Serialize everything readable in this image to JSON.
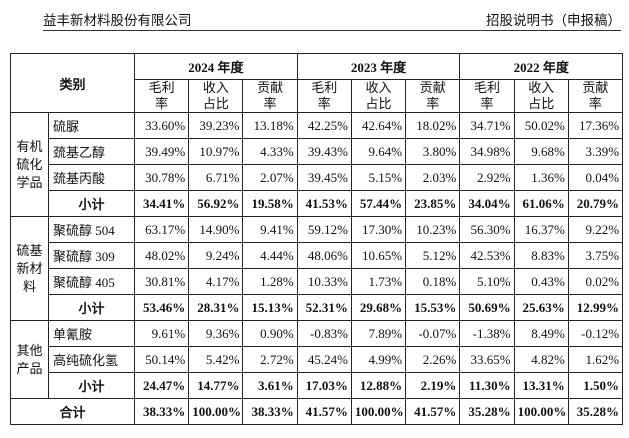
{
  "header": {
    "company": "益丰新材料股份有限公司",
    "document": "招股说明书（申报稿）"
  },
  "table": {
    "category_header": "类别",
    "years": [
      "2024 年度",
      "2023 年度",
      "2022 年度"
    ],
    "metrics": [
      "毛利率",
      "收入占比",
      "贡献率"
    ],
    "groups": [
      {
        "label": "有机硫化学品",
        "rows": [
          {
            "name": "硫脲",
            "values": [
              "33.60%",
              "39.23%",
              "13.18%",
              "42.25%",
              "42.64%",
              "18.02%",
              "34.71%",
              "50.02%",
              "17.36%"
            ]
          },
          {
            "name": "巯基乙醇",
            "values": [
              "39.49%",
              "10.97%",
              "4.33%",
              "39.43%",
              "9.64%",
              "3.80%",
              "34.98%",
              "9.68%",
              "3.39%"
            ]
          },
          {
            "name": "巯基丙酸",
            "values": [
              "30.78%",
              "6.71%",
              "2.07%",
              "39.45%",
              "5.15%",
              "2.03%",
              "2.92%",
              "1.36%",
              "0.04%"
            ]
          },
          {
            "name": "小计",
            "values": [
              "34.41%",
              "56.92%",
              "19.58%",
              "41.53%",
              "57.44%",
              "23.85%",
              "34.04%",
              "61.06%",
              "20.79%"
            ]
          }
        ]
      },
      {
        "label": "硫基新材料",
        "rows": [
          {
            "name": "聚硫醇 504",
            "values": [
              "63.17%",
              "14.90%",
              "9.41%",
              "59.12%",
              "17.30%",
              "10.23%",
              "56.30%",
              "16.37%",
              "9.22%"
            ]
          },
          {
            "name": "聚硫醇 309",
            "values": [
              "48.02%",
              "9.24%",
              "4.44%",
              "48.06%",
              "10.65%",
              "5.12%",
              "42.53%",
              "8.83%",
              "3.75%"
            ]
          },
          {
            "name": "聚硫醇 405",
            "values": [
              "30.81%",
              "4.17%",
              "1.28%",
              "10.33%",
              "1.73%",
              "0.18%",
              "5.10%",
              "0.43%",
              "0.02%"
            ]
          },
          {
            "name": "小计",
            "values": [
              "53.46%",
              "28.31%",
              "15.13%",
              "52.31%",
              "29.68%",
              "15.53%",
              "50.69%",
              "25.63%",
              "12.99%"
            ]
          }
        ]
      },
      {
        "label": "其他产品",
        "rows": [
          {
            "name": "单氰胺",
            "values": [
              "9.61%",
              "9.36%",
              "0.90%",
              "-0.83%",
              "7.89%",
              "-0.07%",
              "-1.38%",
              "8.49%",
              "-0.12%"
            ]
          },
          {
            "name": "高纯硫化氢",
            "values": [
              "50.14%",
              "5.42%",
              "2.72%",
              "45.24%",
              "4.99%",
              "2.26%",
              "33.65%",
              "4.82%",
              "1.62%"
            ]
          },
          {
            "name": "小计",
            "values": [
              "24.47%",
              "14.77%",
              "3.61%",
              "17.03%",
              "12.88%",
              "2.19%",
              "11.30%",
              "13.31%",
              "1.50%"
            ]
          }
        ]
      }
    ],
    "total": {
      "name": "合计",
      "values": [
        "38.33%",
        "100.00%",
        "38.33%",
        "41.57%",
        "100.00%",
        "41.57%",
        "35.28%",
        "100.00%",
        "35.28%"
      ]
    }
  }
}
